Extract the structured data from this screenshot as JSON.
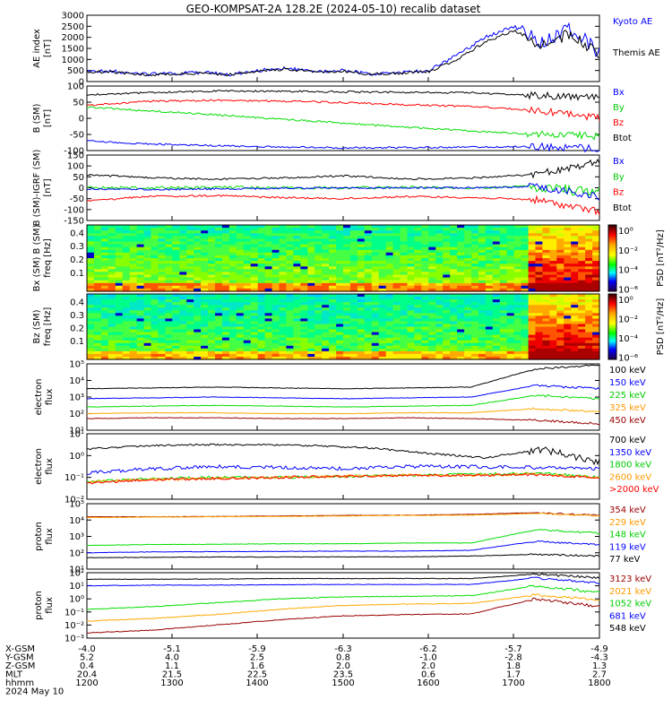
{
  "title": "GEO-KOMPSAT-2A 128.2E (2024-05-10) recalib dataset",
  "colors": {
    "black": "#000000",
    "blue": "#0000ff",
    "green": "#00dd00",
    "red": "#ff0000",
    "orange": "#ffaa00",
    "darkred": "#990000",
    "greenLabel": "#00cc00",
    "orangeLabel": "#ff9900"
  },
  "panels": [
    {
      "ylabel": [
        "AE index",
        "[nT]"
      ],
      "yticks": [
        "3000",
        "2500",
        "2000",
        "1500",
        "1000",
        "500",
        "0"
      ],
      "legend": [
        {
          "text": "Kyoto AE",
          "color": "blue"
        },
        {
          "text": "Themis AE",
          "color": "black"
        }
      ]
    },
    {
      "ylabel": [
        "B (SM)",
        "[nT]"
      ],
      "yticks": [
        "100",
        "50",
        "0",
        "-50",
        "-100"
      ],
      "legend": [
        {
          "text": "Bx",
          "color": "blue"
        },
        {
          "text": "By",
          "color": "greenLabel"
        },
        {
          "text": "Bz",
          "color": "red"
        },
        {
          "text": "Btot",
          "color": "black"
        }
      ]
    },
    {
      "ylabel": [
        "B (SM)-IGRF (SM)",
        "[nT]"
      ],
      "yticks": [
        "150",
        "100",
        "50",
        "0",
        "-50",
        "-100",
        "-150"
      ],
      "legend": [
        {
          "text": "Bx",
          "color": "blue"
        },
        {
          "text": "By",
          "color": "greenLabel"
        },
        {
          "text": "Bz",
          "color": "red"
        },
        {
          "text": "Btot",
          "color": "black"
        }
      ]
    },
    {
      "ylabel": [
        "Bx (SM) B (SM)",
        "freq [Hz]"
      ],
      "yticks": [
        "0.4",
        "0.3",
        "0.2",
        "0.1"
      ],
      "cbar": [
        "PSD [nT²/Hz]",
        "10⁰",
        "10⁻²",
        "10⁻⁴",
        "10⁻⁶"
      ]
    },
    {
      "ylabel": [
        "Bz (SM)",
        "freq [Hz]"
      ],
      "yticks": [
        "0.4",
        "0.3",
        "0.2",
        "0.1"
      ],
      "cbar": [
        "PSD [nT²/Hz]",
        "10⁰",
        "10⁻²",
        "10⁻⁴",
        "10⁻⁶"
      ]
    },
    {
      "ylabel": [
        "electron",
        "flux"
      ],
      "yticks": [
        "10⁵",
        "10⁴",
        "10³",
        "10²",
        "10¹"
      ],
      "legend": [
        {
          "text": "100 keV",
          "color": "black"
        },
        {
          "text": "150 keV",
          "color": "blue"
        },
        {
          "text": "225 keV",
          "color": "greenLabel"
        },
        {
          "text": "325 keV",
          "color": "orangeLabel"
        },
        {
          "text": "450 keV",
          "color": "darkred"
        }
      ]
    },
    {
      "ylabel": [
        "electron",
        "flux"
      ],
      "yticks": [
        "10¹",
        "10⁰",
        "10⁻¹",
        "10⁻²"
      ],
      "legend": [
        {
          "text": "700 keV",
          "color": "black"
        },
        {
          "text": "1350 keV",
          "color": "blue"
        },
        {
          "text": "1800 keV",
          "color": "greenLabel"
        },
        {
          "text": "2600 keV",
          "color": "orangeLabel"
        },
        {
          "text": ">2000 keV",
          "color": "red"
        }
      ]
    },
    {
      "ylabel": [
        "proton",
        "flux"
      ],
      "yticks": [
        "10⁵",
        "10⁴",
        "10³",
        "10²",
        "10¹"
      ],
      "legend": [
        {
          "text": "354 keV",
          "color": "darkred"
        },
        {
          "text": "229 keV",
          "color": "orangeLabel"
        },
        {
          "text": "148 keV",
          "color": "greenLabel"
        },
        {
          "text": "119 keV",
          "color": "blue"
        },
        {
          "text": "77 keV",
          "color": "black"
        }
      ]
    },
    {
      "ylabel": [
        "proton",
        "flux"
      ],
      "yticks": [
        "10²",
        "10¹",
        "10⁰",
        "10⁻¹",
        "10⁻²",
        "10⁻³"
      ],
      "legend": [
        {
          "text": "3123 keV",
          "color": "darkred"
        },
        {
          "text": "2021 keV",
          "color": "orangeLabel"
        },
        {
          "text": "1052 keV",
          "color": "greenLabel"
        },
        {
          "text": "681 keV",
          "color": "blue"
        },
        {
          "text": "548 keV",
          "color": "black"
        }
      ]
    }
  ],
  "xaxis": {
    "rowlabels": [
      "X-GSM",
      "Y-GSM",
      "Z-GSM",
      "MLT",
      "hhmm",
      "2024 May 10"
    ],
    "rows": [
      [
        "-4.0",
        "-5.1",
        "-5.9",
        "-6.3",
        "-6.2",
        "-5.7",
        "-4.9"
      ],
      [
        "5.2",
        "4.0",
        "2.5",
        "0.8",
        "-1.0",
        "-2.8",
        "-4.3"
      ],
      [
        "0.4",
        "1.1",
        "1.6",
        "2.0",
        "2.0",
        "1.8",
        "1.3"
      ],
      [
        "20.4",
        "21.5",
        "22.5",
        "23.5",
        "0.6",
        "1.7",
        "2.7"
      ],
      [
        "1200",
        "1300",
        "1400",
        "1500",
        "1600",
        "1700",
        "1800"
      ]
    ]
  },
  "chart_data": [
    {
      "type": "line",
      "ylabel": "AE index [nT]",
      "x": [
        1200,
        1300,
        1400,
        1500,
        1600,
        1700,
        1730,
        1745,
        1800
      ],
      "ylim": [
        0,
        3000
      ],
      "series": [
        {
          "name": "Kyoto AE",
          "values": [
            500,
            350,
            400,
            600,
            550,
            400,
            1800,
            2400,
            1300
          ]
        },
        {
          "name": "Themis AE",
          "values": [
            450,
            320,
            380,
            560,
            520,
            380,
            1600,
            2200,
            1200
          ]
        }
      ]
    },
    {
      "type": "line",
      "ylabel": "B (SM) [nT]",
      "x": [
        1200,
        1300,
        1400,
        1500,
        1600,
        1700,
        1800
      ],
      "ylim": [
        -100,
        100
      ],
      "series": [
        {
          "name": "Bx",
          "values": [
            -70,
            -85,
            -90,
            -92,
            -90,
            -85,
            -95
          ]
        },
        {
          "name": "By",
          "values": [
            40,
            15,
            -10,
            -30,
            -45,
            -55,
            -60
          ]
        },
        {
          "name": "Bz",
          "values": [
            45,
            60,
            60,
            55,
            45,
            40,
            10
          ]
        },
        {
          "name": "Btot",
          "values": [
            80,
            90,
            90,
            85,
            85,
            75,
            60
          ]
        }
      ]
    },
    {
      "type": "line",
      "ylabel": "B (SM)-IGRF (SM) [nT]",
      "x": [
        1200,
        1300,
        1400,
        1500,
        1600,
        1700,
        1800
      ],
      "ylim": [
        -150,
        150
      ],
      "series": [
        {
          "name": "Bx",
          "values": [
            -5,
            -5,
            0,
            0,
            0,
            5,
            -40
          ]
        },
        {
          "name": "By",
          "values": [
            0,
            0,
            0,
            0,
            0,
            5,
            0
          ]
        },
        {
          "name": "Bz",
          "values": [
            -50,
            -35,
            -40,
            -50,
            -40,
            -50,
            -110
          ]
        },
        {
          "name": "Btot",
          "values": [
            55,
            40,
            40,
            55,
            40,
            50,
            120
          ]
        }
      ]
    },
    {
      "type": "heatmap",
      "ylabel": "Bx (SM) B (SM) freq [Hz]",
      "ylim": [
        0,
        0.5
      ]
    },
    {
      "type": "heatmap",
      "ylabel": "Bz (SM) freq [Hz]",
      "ylim": [
        0,
        0.5
      ]
    },
    {
      "type": "line",
      "ylabel": "electron flux",
      "x": [
        1200,
        1300,
        1400,
        1500,
        1600,
        1700,
        1800
      ],
      "ylog": true,
      "ylim": [
        10,
        100000
      ],
      "series": [
        {
          "name": "100 keV",
          "values": [
            3000,
            3500,
            3500,
            3200,
            3000,
            3500,
            80000
          ]
        },
        {
          "name": "150 keV",
          "values": [
            800,
            900,
            900,
            850,
            800,
            900,
            5000
          ]
        },
        {
          "name": "225 keV",
          "values": [
            250,
            300,
            300,
            280,
            250,
            300,
            1500
          ]
        },
        {
          "name": "325 keV",
          "values": [
            100,
            110,
            110,
            100,
            100,
            110,
            200
          ]
        },
        {
          "name": "450 keV",
          "values": [
            50,
            55,
            55,
            50,
            50,
            55,
            30
          ]
        }
      ]
    },
    {
      "type": "line",
      "ylabel": "electron flux",
      "x": [
        1200,
        1300,
        1400,
        1500,
        1600,
        1700,
        1800
      ],
      "ylog": true,
      "ylim": [
        0.01,
        10
      ],
      "series": [
        {
          "name": "700 keV",
          "values": [
            2,
            3,
            3,
            2.5,
            2,
            1,
            0.5
          ]
        },
        {
          "name": "1350 keV",
          "values": [
            0.2,
            0.3,
            0.3,
            0.25,
            0.2,
            0.3,
            0.2
          ]
        },
        {
          "name": "1800 keV",
          "values": [
            0.08,
            0.1,
            0.1,
            0.1,
            0.12,
            0.15,
            0.1
          ]
        },
        {
          "name": "2600 keV",
          "values": [
            0.08,
            0.09,
            0.1,
            0.1,
            0.12,
            0.14,
            0.1
          ]
        },
        {
          "name": ">2000 keV",
          "values": [
            0.07,
            0.09,
            0.1,
            0.1,
            0.11,
            0.13,
            0.1
          ]
        }
      ]
    },
    {
      "type": "line",
      "ylabel": "proton flux",
      "x": [
        1200,
        1300,
        1400,
        1500,
        1600,
        1700,
        1800
      ],
      "ylog": true,
      "ylim": [
        10,
        100000
      ],
      "series": [
        {
          "name": "354 keV",
          "values": [
            20000,
            20000,
            20000,
            20000,
            20000,
            20000,
            20000
          ]
        },
        {
          "name": "229 keV",
          "values": [
            15000,
            16000,
            16000,
            17000,
            18000,
            20000,
            25000
          ]
        },
        {
          "name": "148 keV",
          "values": [
            300,
            320,
            330,
            340,
            350,
            400,
            3000
          ]
        },
        {
          "name": "119 keV",
          "values": [
            100,
            110,
            115,
            120,
            125,
            150,
            600
          ]
        },
        {
          "name": "77 keV",
          "values": [
            50,
            55,
            55,
            55,
            60,
            60,
            80
          ]
        }
      ]
    },
    {
      "type": "line",
      "ylabel": "proton flux",
      "x": [
        1200,
        1300,
        1400,
        1500,
        1600,
        1700,
        1800
      ],
      "ylog": true,
      "ylim": [
        0.001,
        100
      ],
      "series": [
        {
          "name": "3123 keV",
          "values": [
            30,
            30,
            30,
            30,
            30,
            30,
            40
          ]
        },
        {
          "name": "2021 keV",
          "values": [
            10,
            12,
            12,
            12,
            12,
            12,
            15
          ]
        },
        {
          "name": "1052 keV",
          "values": [
            0.1,
            0.15,
            0.4,
            0.8,
            1.2,
            1.5,
            2
          ]
        },
        {
          "name": "681 keV",
          "values": [
            1,
            1.1,
            1.1,
            1.1,
            1.1,
            1.2,
            1.5
          ]
        },
        {
          "name": "548 keV",
          "values": [
            0.002,
            0.003,
            0.01,
            0.03,
            0.05,
            0.06,
            0.1
          ]
        }
      ]
    }
  ]
}
